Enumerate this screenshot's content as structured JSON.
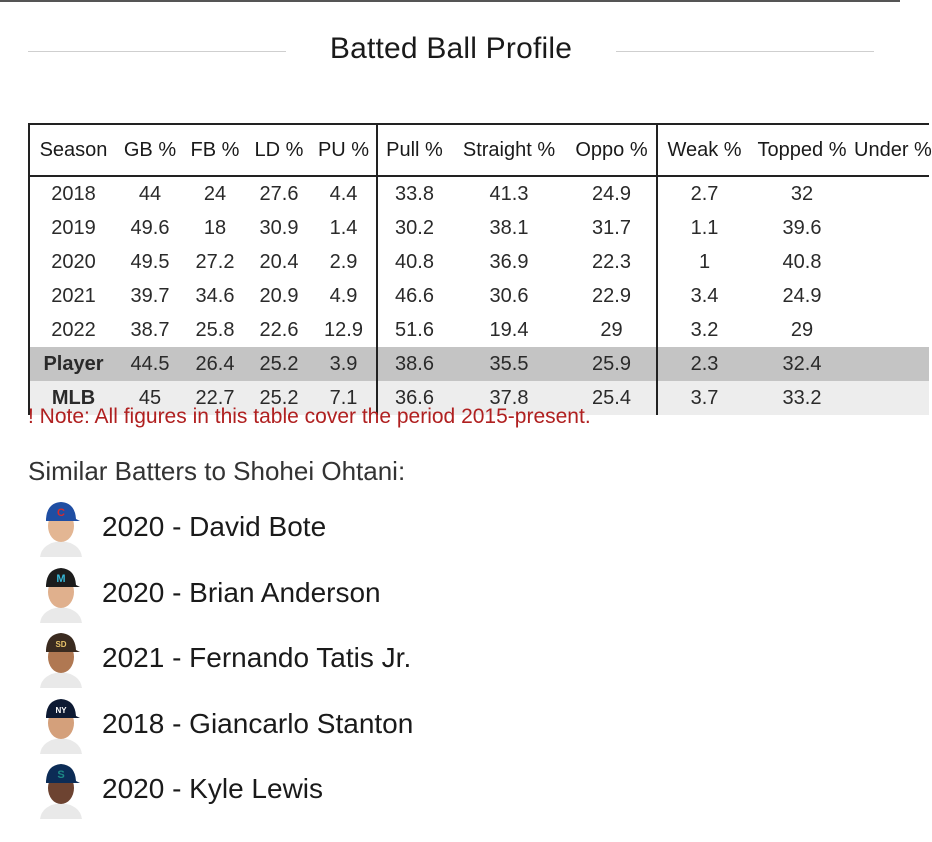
{
  "section": {
    "title": "Batted Ball Profile"
  },
  "table": {
    "columns": [
      "Season",
      "GB %",
      "FB %",
      "LD %",
      "PU %",
      "Pull %",
      "Straight %",
      "Oppo %",
      "Weak %",
      "Topped %",
      "Under %"
    ],
    "rows": [
      [
        "2018",
        "44",
        "24",
        "27.6",
        "4.4",
        "33.8",
        "41.3",
        "24.9",
        "2.7",
        "32",
        ""
      ],
      [
        "2019",
        "49.6",
        "18",
        "30.9",
        "1.4",
        "30.2",
        "38.1",
        "31.7",
        "1.1",
        "39.6",
        ""
      ],
      [
        "2020",
        "49.5",
        "27.2",
        "20.4",
        "2.9",
        "40.8",
        "36.9",
        "22.3",
        "1",
        "40.8",
        ""
      ],
      [
        "2021",
        "39.7",
        "34.6",
        "20.9",
        "4.9",
        "46.6",
        "30.6",
        "22.9",
        "3.4",
        "24.9",
        ""
      ],
      [
        "2022",
        "38.7",
        "25.8",
        "22.6",
        "12.9",
        "51.6",
        "19.4",
        "29",
        "3.2",
        "29",
        ""
      ],
      [
        "Player",
        "44.5",
        "26.4",
        "25.2",
        "3.9",
        "38.6",
        "35.5",
        "25.9",
        "2.3",
        "32.4",
        ""
      ],
      [
        "MLB",
        "45",
        "22.7",
        "25.2",
        "7.1",
        "36.6",
        "37.8",
        "25.4",
        "3.7",
        "33.2",
        ""
      ]
    ]
  },
  "note": "! Note: All figures in this table cover the period 2015-present.",
  "similar": {
    "title": "Similar Batters to Shohei Ohtani:",
    "batters": [
      {
        "label": "2020 - David Bote",
        "cap_color": "#1f4ea3",
        "cap_mark": "C",
        "mark_color": "#d82a2a",
        "skin": "#e3b693"
      },
      {
        "label": "2020 - Brian Anderson",
        "cap_color": "#1c1c1c",
        "cap_mark": "M",
        "mark_color": "#37b6d6",
        "skin": "#e0b08d"
      },
      {
        "label": "2021 - Fernando Tatis Jr.",
        "cap_color": "#3a2b20",
        "cap_mark": "SD",
        "mark_color": "#e8c36a",
        "skin": "#b07852"
      },
      {
        "label": "2018 - Giancarlo Stanton",
        "cap_color": "#0d1a33",
        "cap_mark": "NY",
        "mark_color": "#ffffff",
        "skin": "#d4a07b"
      },
      {
        "label": "2020 - Kyle Lewis",
        "cap_color": "#0c2c56",
        "cap_mark": "S",
        "mark_color": "#1d8a86",
        "skin": "#6d4331"
      }
    ]
  }
}
